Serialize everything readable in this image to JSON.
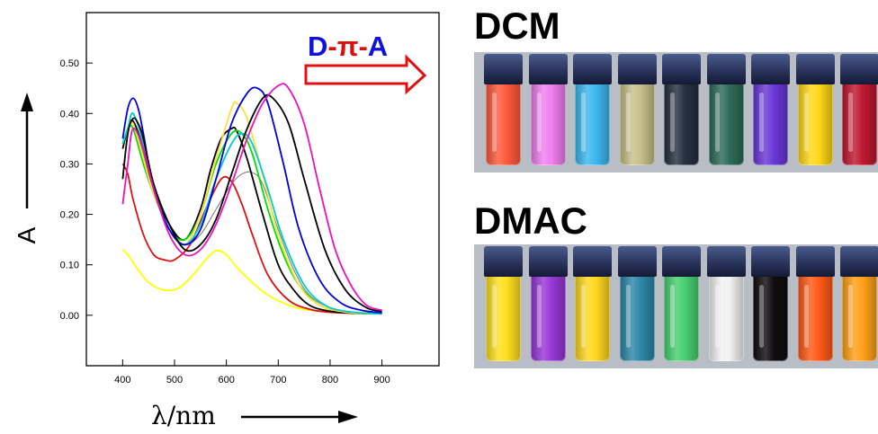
{
  "chart_data": {
    "type": "line",
    "xlabel": "λ/nm",
    "ylabel": "A",
    "xlim": [
      330,
      1010
    ],
    "ylim": [
      -0.1,
      0.6
    ],
    "x_ticks": [
      "400",
      "500",
      "600",
      "700",
      "800",
      "900"
    ],
    "y_ticks": [
      "0.00",
      "0.10",
      "0.20",
      "0.30",
      "0.40",
      "0.50"
    ],
    "grid": false,
    "annotation": "D-π-A",
    "annotation_parts": [
      "D",
      "-",
      "π",
      "-",
      "A"
    ],
    "annotation_colors": [
      "#1010e0",
      "#d81010",
      "#d81010",
      "#d81010",
      "#1010e0"
    ],
    "series": [
      {
        "color": "#ffff00",
        "x": [
          400,
          410,
          430,
          450,
          480,
          510,
          540,
          560,
          580,
          600,
          620,
          650,
          680,
          720,
          760,
          800,
          850,
          900
        ],
        "y": [
          0.13,
          0.12,
          0.09,
          0.065,
          0.05,
          0.055,
          0.085,
          0.11,
          0.128,
          0.12,
          0.095,
          0.065,
          0.04,
          0.02,
          0.01,
          0.008,
          0.005,
          0.005
        ]
      },
      {
        "color": "#e01010",
        "x": [
          400,
          410,
          420,
          440,
          460,
          480,
          500,
          530,
          560,
          590,
          610,
          630,
          650,
          680,
          720,
          760,
          800,
          850,
          900
        ],
        "y": [
          0.3,
          0.28,
          0.23,
          0.16,
          0.12,
          0.11,
          0.11,
          0.14,
          0.21,
          0.27,
          0.265,
          0.22,
          0.16,
          0.08,
          0.03,
          0.012,
          0.006,
          0.004,
          0.004
        ]
      },
      {
        "color": "#808080",
        "x": [
          400,
          410,
          420,
          440,
          460,
          490,
          520,
          550,
          580,
          610,
          630,
          650,
          670,
          700,
          730,
          760,
          800,
          850,
          900
        ],
        "y": [
          0.33,
          0.37,
          0.38,
          0.32,
          0.24,
          0.17,
          0.14,
          0.16,
          0.21,
          0.26,
          0.28,
          0.283,
          0.26,
          0.17,
          0.09,
          0.04,
          0.015,
          0.006,
          0.004
        ]
      },
      {
        "color": "#000000",
        "x": [
          400,
          410,
          420,
          440,
          460,
          490,
          520,
          550,
          570,
          590,
          610,
          620,
          640,
          670,
          700,
          730,
          760,
          800,
          850,
          900
        ],
        "y": [
          0.33,
          0.37,
          0.385,
          0.33,
          0.25,
          0.18,
          0.15,
          0.21,
          0.29,
          0.35,
          0.37,
          0.365,
          0.31,
          0.2,
          0.1,
          0.05,
          0.02,
          0.008,
          0.004,
          0.003
        ]
      },
      {
        "color": "#00dd00",
        "x": [
          400,
          410,
          420,
          440,
          460,
          490,
          520,
          550,
          580,
          610,
          630,
          650,
          680,
          710,
          740,
          780,
          820,
          860,
          900
        ],
        "y": [
          0.34,
          0.37,
          0.37,
          0.3,
          0.24,
          0.17,
          0.15,
          0.2,
          0.3,
          0.36,
          0.36,
          0.32,
          0.21,
          0.12,
          0.06,
          0.02,
          0.008,
          0.004,
          0.003
        ]
      },
      {
        "color": "#ffe040",
        "x": [
          400,
          410,
          420,
          440,
          460,
          490,
          520,
          550,
          580,
          610,
          620,
          640,
          670,
          700,
          740,
          780,
          820,
          860,
          900
        ],
        "y": [
          0.34,
          0.37,
          0.38,
          0.31,
          0.24,
          0.17,
          0.14,
          0.2,
          0.31,
          0.41,
          0.42,
          0.39,
          0.28,
          0.16,
          0.06,
          0.02,
          0.008,
          0.004,
          0.003
        ]
      },
      {
        "color": "#00cccc",
        "x": [
          400,
          410,
          420,
          440,
          460,
          490,
          520,
          550,
          580,
          610,
          630,
          650,
          680,
          710,
          750,
          790,
          830,
          870,
          900
        ],
        "y": [
          0.34,
          0.37,
          0.4,
          0.34,
          0.25,
          0.17,
          0.14,
          0.18,
          0.27,
          0.34,
          0.36,
          0.34,
          0.25,
          0.15,
          0.06,
          0.02,
          0.008,
          0.004,
          0.003
        ]
      },
      {
        "color": "#0000dd",
        "x": [
          400,
          410,
          420,
          430,
          440,
          460,
          490,
          520,
          550,
          580,
          610,
          640,
          660,
          680,
          710,
          740,
          780,
          820,
          860,
          900
        ],
        "y": [
          0.35,
          0.41,
          0.43,
          0.41,
          0.36,
          0.25,
          0.17,
          0.14,
          0.17,
          0.27,
          0.38,
          0.44,
          0.45,
          0.42,
          0.3,
          0.17,
          0.07,
          0.025,
          0.01,
          0.005
        ]
      },
      {
        "color": "#000000",
        "x": [
          400,
          410,
          420,
          430,
          440,
          460,
          490,
          520,
          550,
          580,
          610,
          640,
          670,
          690,
          720,
          750,
          790,
          830,
          870,
          900
        ],
        "y": [
          0.27,
          0.36,
          0.39,
          0.38,
          0.35,
          0.26,
          0.18,
          0.13,
          0.14,
          0.19,
          0.28,
          0.37,
          0.43,
          0.43,
          0.38,
          0.27,
          0.13,
          0.05,
          0.015,
          0.008
        ]
      },
      {
        "color": "#ee10c0",
        "x": [
          400,
          410,
          420,
          440,
          460,
          490,
          520,
          550,
          580,
          610,
          640,
          670,
          700,
          720,
          750,
          780,
          810,
          840,
          870,
          900
        ],
        "y": [
          0.22,
          0.3,
          0.37,
          0.33,
          0.25,
          0.16,
          0.12,
          0.13,
          0.18,
          0.26,
          0.35,
          0.42,
          0.455,
          0.45,
          0.38,
          0.25,
          0.13,
          0.06,
          0.02,
          0.01
        ]
      }
    ]
  },
  "panels": [
    {
      "title": "DCM",
      "vials": [
        {
          "color": "#ff5a3c"
        },
        {
          "color": "#f080f0"
        },
        {
          "color": "#3cb8f0"
        },
        {
          "color": "#c8c08a"
        },
        {
          "color": "#263040"
        },
        {
          "color": "#2e6b5a"
        },
        {
          "color": "#6a38d8"
        },
        {
          "color": "#ffd818"
        },
        {
          "color": "#c01830"
        }
      ]
    },
    {
      "title": "DMAC",
      "vials": [
        {
          "color": "#ffe020"
        },
        {
          "color": "#9838d8"
        },
        {
          "color": "#ffd820"
        },
        {
          "color": "#2e88a8"
        },
        {
          "color": "#48d070"
        },
        {
          "color": "#f2f2f2"
        },
        {
          "color": "#100c10"
        },
        {
          "color": "#ff5a18"
        },
        {
          "color": "#ffa018"
        }
      ]
    }
  ]
}
